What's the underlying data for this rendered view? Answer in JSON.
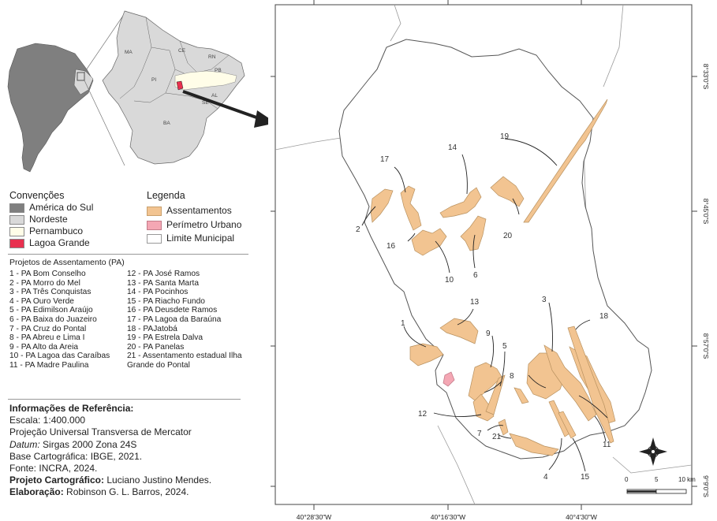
{
  "inset": {
    "state_labels": [
      "MA",
      "CE",
      "RN",
      "PB",
      "PI",
      "AL",
      "SE",
      "BA"
    ]
  },
  "conventions": {
    "title": "Convenções",
    "items": [
      {
        "label": "América do Sul",
        "color": "#7f7f7f"
      },
      {
        "label": "Nordeste",
        "color": "#d9d9d9"
      },
      {
        "label": "Pernambuco",
        "color": "#fffde8"
      },
      {
        "label": "Lagoa Grande",
        "color": "#e8304f"
      }
    ]
  },
  "legend": {
    "title": "Legenda",
    "items": [
      {
        "label": "Assentamentos",
        "color": "#f2c491"
      },
      {
        "label": "Perímetro Urbano",
        "color": "#f4a7b4"
      },
      {
        "label": "Limite Municipal",
        "color": "#ffffff"
      }
    ]
  },
  "projects": {
    "title": "Projetos de Assentamento (PA)",
    "col1": [
      "1 - PA Bom Conselho",
      "2 - PA Morro do Mel",
      "3 - PA Três Conquistas",
      "4 - PA Ouro Verde",
      "5 - PA Edimilson Araújo",
      "6 - PA Baixa do Juazeiro",
      "7 - PA Cruz do Pontal",
      "8 - PA Abreu e Lima I",
      "9 - PA Alto da Areia",
      "10 - PA Lagoa das Caraíbas",
      "11 - PA Madre Paulina"
    ],
    "col2": [
      "12 - PA José Ramos",
      "13 - PA Santa Marta",
      "14 - PA Pocinhos",
      "15 - PA Riacho Fundo",
      "16 - PA Deusdete Ramos",
      "17 - PA Lagoa da Baraúna",
      "18 - PAJatobá",
      "19 - PA Estrela Dalva",
      "20 - PA Panelas",
      "21 - Assentamento estadual Ilha",
      "Grande do Pontal"
    ]
  },
  "reference": {
    "title": "Informações de Referência:",
    "scale": "Escala: 1:400.000",
    "projection": "Projeção Universal Transversa de Mercator",
    "datum_label": "Datum:",
    "datum_value": " Sirgas 2000 Zona 24S",
    "base": "Base Cartográfica: IBGE, 2021.",
    "source": "Fonte: INCRA, 2024.",
    "cartographic_label": "Projeto Cartográfico:",
    "cartographic_value": " Luciano Justino Mendes.",
    "elaboration_label": "Elaboração:",
    "elaboration_value": " Robinson G. L. Barros, 2024."
  },
  "map": {
    "bottom_ticks": [
      "40°28'30\"W",
      "40°16'30\"W",
      "40°4'30\"W"
    ],
    "right_ticks": [
      "8°33'0\"S",
      "8°45'0\"S",
      "8°57'0\"S",
      "9°9'0\"S"
    ],
    "scalebar": {
      "labels": [
        "0",
        "5",
        "10 km"
      ]
    },
    "settlement_labels": [
      "1",
      "2",
      "3",
      "4",
      "5",
      "6",
      "7",
      "8",
      "9",
      "10",
      "11",
      "12",
      "13",
      "14",
      "15",
      "16",
      "17",
      "18",
      "19",
      "20",
      "21"
    ]
  }
}
